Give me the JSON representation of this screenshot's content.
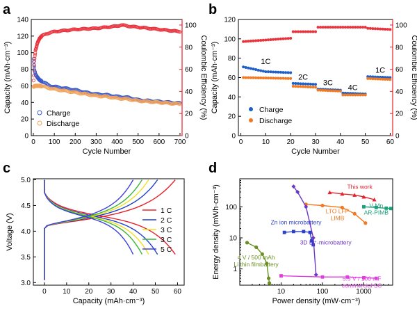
{
  "chart_data": [
    {
      "panel": "a",
      "type": "scatter",
      "xlabel": "Cycle Number",
      "ylabel": "Capacity (mAh·cm⁻³)",
      "y2label": "Coulombic Efficiency (%)",
      "xlim": [
        -10,
        710
      ],
      "ylim": [
        0,
        140
      ],
      "y2lim": [
        0,
        105
      ],
      "xticks": [
        0,
        100,
        200,
        300,
        400,
        500,
        600,
        700
      ],
      "yticks": [
        0,
        20,
        40,
        60,
        80,
        100,
        120,
        140
      ],
      "y2ticks": [
        0,
        20,
        40,
        60,
        80,
        100
      ],
      "legend": "bottom-left",
      "series": [
        {
          "name": "Charge",
          "axis": "left",
          "color": "#3b59c9",
          "marker": "circle-open",
          "x": [
            1,
            5,
            10,
            20,
            30,
            50,
            80,
            100,
            150,
            200,
            250,
            300,
            350,
            400,
            450,
            500,
            550,
            600,
            650,
            700
          ],
          "y": [
            92,
            80,
            74,
            70,
            67,
            64,
            60,
            59,
            57,
            55,
            52,
            50,
            49,
            47,
            46,
            43,
            42,
            41,
            40,
            39
          ]
        },
        {
          "name": "Discharge",
          "axis": "left",
          "color": "#f3a35c",
          "marker": "circle-open",
          "x": [
            1,
            10,
            30,
            50,
            80,
            100,
            150,
            200,
            250,
            300,
            350,
            400,
            450,
            500,
            550,
            600,
            650,
            700
          ],
          "y": [
            59,
            60,
            60,
            59,
            57,
            56,
            54,
            52,
            50,
            48,
            47,
            45,
            44,
            42,
            41,
            40,
            39,
            38
          ]
        },
        {
          "axis": "right",
          "color": "#e8323c",
          "marker": "circle-open",
          "x": [
            1,
            5,
            10,
            20,
            30,
            40,
            60,
            80,
            100,
            150,
            200,
            250,
            300,
            350,
            400,
            420,
            450,
            500,
            550,
            600,
            650,
            700
          ],
          "y": [
            50,
            68,
            77,
            84,
            88,
            90,
            92,
            93,
            94,
            95,
            96,
            96.5,
            97,
            98,
            99,
            100,
            99,
            98,
            97,
            96,
            95,
            94
          ]
        }
      ]
    },
    {
      "panel": "b",
      "type": "scatter",
      "xlabel": "Cycle Number",
      "ylabel": "Capacity (mAh·cm⁻³)",
      "y2label": "Coulombic Efficiency (%)",
      "xlim": [
        -1,
        61
      ],
      "ylim": [
        0,
        120
      ],
      "y2lim": [
        0,
        105
      ],
      "xticks": [
        0,
        10,
        20,
        30,
        40,
        50,
        60
      ],
      "yticks": [
        0,
        20,
        40,
        60,
        80,
        100,
        120
      ],
      "y2ticks": [
        0,
        20,
        40,
        60,
        80,
        100
      ],
      "legend": "bottom-left",
      "rate_labels": [
        {
          "text": "1C",
          "x": 10,
          "y": 74
        },
        {
          "text": "2C",
          "x": 25,
          "y": 58
        },
        {
          "text": "3C",
          "x": 35,
          "y": 52
        },
        {
          "text": "4C",
          "x": 45,
          "y": 47
        },
        {
          "text": "1C",
          "x": 56,
          "y": 65
        }
      ],
      "series": [
        {
          "name": "Charge",
          "axis": "left",
          "color": "#1f5fc7",
          "segments": [
            [
              1,
              10,
              71,
              66
            ],
            [
              11,
              20,
              66,
              65
            ],
            [
              21,
              30,
              54,
              53
            ],
            [
              31,
              40,
              48,
              47
            ],
            [
              41,
              50,
              44,
              43
            ],
            [
              51,
              60,
              61,
              60
            ]
          ]
        },
        {
          "name": "Discharge",
          "axis": "left",
          "color": "#f07a21",
          "segments": [
            [
              1,
              20,
              60,
              59
            ],
            [
              21,
              30,
              51,
              50
            ],
            [
              31,
              40,
              47,
              46
            ],
            [
              41,
              50,
              42,
              42
            ],
            [
              51,
              60,
              59,
              58
            ]
          ]
        },
        {
          "axis": "right",
          "color": "#e8323c",
          "segments": [
            [
              1,
              20,
              85,
              88
            ],
            [
              21,
              30,
              94,
              94
            ],
            [
              31,
              50,
              98,
              98
            ],
            [
              51,
              60,
              97,
              96
            ]
          ]
        }
      ]
    },
    {
      "panel": "c",
      "type": "line",
      "xlabel": "Capacity (mAh·cm⁻³)",
      "ylabel": "Voltage (V)",
      "xlim": [
        -5,
        63
      ],
      "ylim": [
        2.95,
        5.02
      ],
      "xticks": [
        0,
        10,
        20,
        30,
        40,
        50,
        60
      ],
      "yticks": [
        3.0,
        3.5,
        4.0,
        4.5,
        5.0
      ],
      "legend": "right",
      "series": [
        {
          "name": "1 C",
          "color": "#e8202a",
          "cap": 59
        },
        {
          "name": "2 C",
          "color": "#1f3fd0",
          "cap": 51
        },
        {
          "name": "3 C",
          "color": "#f0e020",
          "cap": 47
        },
        {
          "name": "3 C",
          "color": "#3ab534",
          "cap": 44
        },
        {
          "name": "5 C",
          "color": "#3d3fe0",
          "cap": 40
        }
      ]
    },
    {
      "panel": "d",
      "type": "line",
      "scale": "log-log",
      "xlabel": "Power density (mW·cm⁻³)",
      "ylabel": "Energy density (mWh·cm⁻³)",
      "xlim": [
        1,
        5000
      ],
      "ylim": [
        0.3,
        800
      ],
      "xticks": [
        10,
        100,
        1000
      ],
      "xtick_labels": [
        "10",
        "100",
        "1000"
      ],
      "yticks": [
        1,
        10,
        100
      ],
      "ytick_labels": [
        "1",
        "10",
        "100"
      ],
      "series": [
        {
          "name": "This work",
          "color": "#e8202a",
          "label_at": [
            800,
            380
          ],
          "points": [
            [
              150,
              290
            ],
            [
              300,
              260
            ],
            [
              600,
              240
            ],
            [
              1000,
              210
            ],
            [
              1800,
              170
            ]
          ]
        },
        {
          "name": "LTO LFP\nLIMB",
          "color": "#f07a21",
          "label_at": [
            230,
            62
          ],
          "points": [
            [
              40,
              120
            ],
            [
              100,
              110
            ],
            [
              300,
              95
            ],
            [
              600,
              60
            ],
            [
              1100,
              30
            ]
          ]
        },
        {
          "name": "V-Mn\nAR-PIMB",
          "color": "#1aa07a",
          "label_at": [
            2000,
            95
          ],
          "points": [
            [
              1000,
              100
            ],
            [
              2000,
              95
            ],
            [
              3500,
              90
            ],
            [
              4500,
              88
            ]
          ]
        },
        {
          "name": "Zn ion microbattery",
          "color": "#2b3fc7",
          "label_at": [
            23,
            27
          ],
          "points": [
            [
              12,
              15
            ],
            [
              20,
              16
            ],
            [
              35,
              16
            ],
            [
              50,
              15
            ],
            [
              55,
              8
            ],
            [
              60,
              6
            ]
          ]
        },
        {
          "name": "3D Li⁺-microbattery",
          "color": "#6a35c9",
          "label_at": [
            120,
            6.2
          ],
          "points": [
            [
              20,
              450
            ],
            [
              25,
              300
            ],
            [
              40,
              100
            ],
            [
              60,
              10
            ],
            [
              70,
              0.65
            ]
          ]
        },
        {
          "name": "4 V / 500 mAh\nLi thin filmbattery",
          "color": "#6a8f22",
          "label_at": [
            2.5,
            2.0
          ],
          "points": [
            [
              1.5,
              7
            ],
            [
              2.5,
              5
            ],
            [
              3.5,
              3
            ],
            [
              4.5,
              1.5
            ],
            [
              5,
              0.5
            ],
            [
              5.2,
              0.35
            ]
          ]
        },
        {
          "name": "5.5 V / 100 mF\ncommercial SC",
          "color": "#e03ce0",
          "label_at": [
            900,
            0.42
          ],
          "points": [
            [
              10,
              0.6
            ],
            [
              100,
              0.55
            ],
            [
              400,
              0.55
            ],
            [
              1000,
              0.52
            ],
            [
              2000,
              0.5
            ]
          ]
        }
      ]
    }
  ],
  "panel_letters": [
    "a",
    "b",
    "c",
    "d"
  ],
  "colors": {
    "axis": "#000000",
    "red_axis": "#e8202a"
  }
}
